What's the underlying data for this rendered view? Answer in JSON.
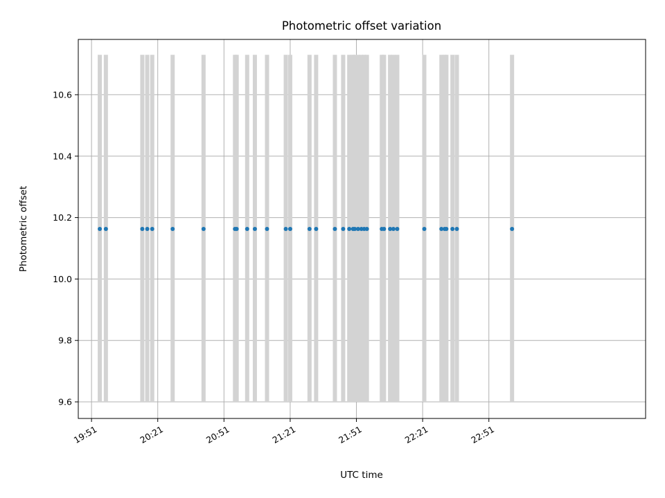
{
  "chart_data": {
    "type": "scatter",
    "title": "Photometric offset variation",
    "xlabel": "UTC time",
    "ylabel": "Photometric offset",
    "x_type": "time",
    "xlim": [
      "19:45",
      "24:02"
    ],
    "ylim": [
      9.546,
      10.78
    ],
    "x_ticks": [
      "19:51",
      "20:21",
      "20:51",
      "21:21",
      "21:51",
      "22:21",
      "22:51"
    ],
    "y_ticks": [
      9.6,
      9.8,
      10.0,
      10.2,
      10.4,
      10.6
    ],
    "y_tick_labels": [
      "9.6",
      "9.8",
      "10.0",
      "10.2",
      "10.4",
      "10.6"
    ],
    "grid": true,
    "legend": "none",
    "band_range": [
      9.6,
      10.73
    ],
    "series": [
      {
        "color": "#1f77b4",
        "x": [
          "19:54:45",
          "19:57:30",
          "20:14:00",
          "20:16:15",
          "20:18:30",
          "20:27:45",
          "20:41:45",
          "20:56:00",
          "20:56:45",
          "21:01:30",
          "21:05:00",
          "21:10:30",
          "21:19:00",
          "21:21:00",
          "21:29:45",
          "21:32:45",
          "21:41:15",
          "21:45:00",
          "21:47:45",
          "21:49:30",
          "21:50:15",
          "21:51:45",
          "21:53:15",
          "21:54:30",
          "21:55:45",
          "22:02:30",
          "22:03:30",
          "22:06:15",
          "22:07:45",
          "22:09:30",
          "22:21:45",
          "22:29:30",
          "22:31:00",
          "22:31:45",
          "22:34:30",
          "22:36:30",
          "23:01:30"
        ],
        "y": [
          10.163,
          10.163,
          10.163,
          10.163,
          10.163,
          10.163,
          10.163,
          10.163,
          10.163,
          10.163,
          10.163,
          10.163,
          10.163,
          10.163,
          10.163,
          10.163,
          10.163,
          10.163,
          10.163,
          10.163,
          10.163,
          10.163,
          10.163,
          10.163,
          10.163,
          10.163,
          10.163,
          10.163,
          10.163,
          10.163,
          10.163,
          10.163,
          10.163,
          10.163,
          10.163,
          10.163,
          10.163
        ]
      }
    ],
    "bands": {
      "color": "#d3d3d3",
      "x": [
        "19:54:45",
        "19:57:30",
        "20:14:00",
        "20:16:15",
        "20:18:30",
        "20:27:45",
        "20:41:45",
        "20:56:00",
        "20:56:45",
        "21:01:30",
        "21:05:00",
        "21:10:30",
        "21:19:00",
        "21:21:00",
        "21:29:45",
        "21:32:45",
        "21:41:15",
        "21:45:00",
        "21:47:45",
        "21:49:30",
        "21:50:15",
        "21:51:45",
        "21:53:15",
        "21:54:30",
        "21:55:45",
        "22:02:30",
        "22:03:30",
        "22:06:15",
        "22:07:45",
        "22:09:30",
        "22:21:45",
        "22:29:30",
        "22:31:00",
        "22:31:45",
        "22:34:30",
        "22:36:30",
        "23:01:30"
      ]
    },
    "colors": {
      "frame": "#000000",
      "grid": "#b0b0b0"
    }
  }
}
